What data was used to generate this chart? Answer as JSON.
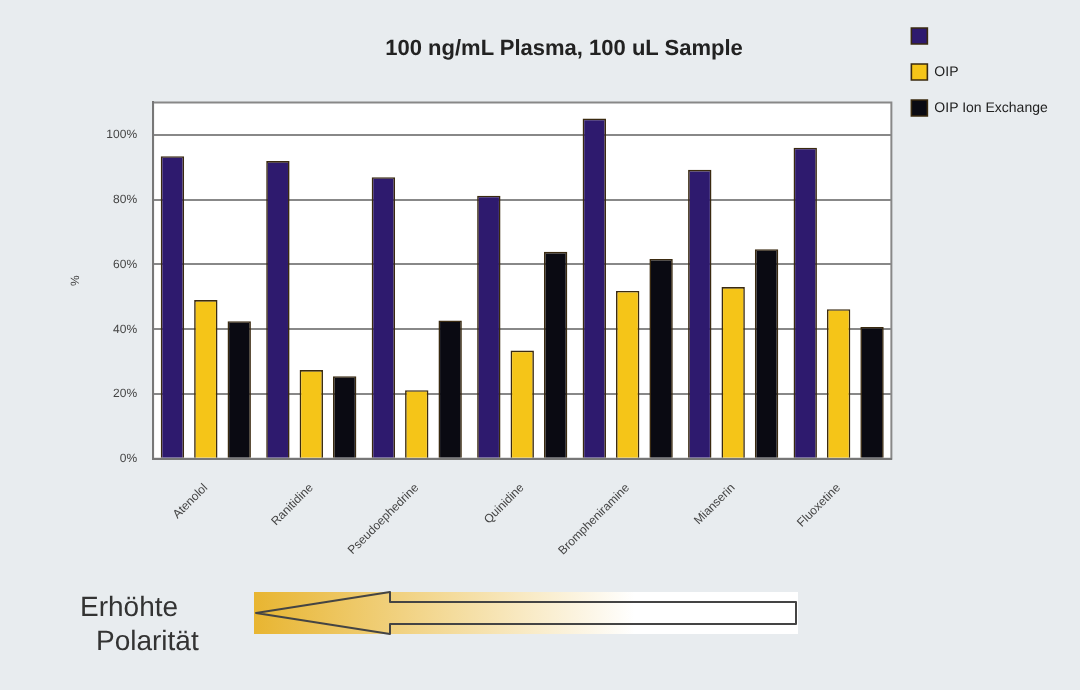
{
  "chart_data": {
    "type": "bar",
    "title": "100 ng/mL Plasma, 100 uL Sample",
    "ylabel": "%",
    "categories": [
      "Atenolol",
      "Ranitidine",
      "Pseudoephedrine",
      "Quinidine",
      "Brompheniramine",
      "Mianserin",
      "Fluoxetine"
    ],
    "series": [
      {
        "color": "#2e1a6e",
        "values": [
          93.4,
          91.9,
          86.9,
          81.2,
          105,
          89.2,
          96
        ]
      },
      {
        "name": "OIP",
        "color": "#f5c518",
        "values": [
          49,
          27.4,
          21.2,
          33.4,
          51.8,
          53,
          46.2
        ]
      },
      {
        "name": "OIP Ion Exchange",
        "color": "#0a0a12",
        "values": [
          42.5,
          25.5,
          42.7,
          63.9,
          61.7,
          64.7,
          40.7
        ]
      }
    ],
    "ylim": [
      0,
      110
    ],
    "yticks": [
      {
        "value": 0,
        "label": "0%"
      },
      {
        "value": 20,
        "label": "20%"
      },
      {
        "value": 40,
        "label": "40%"
      },
      {
        "value": 60,
        "label": "60%"
      },
      {
        "value": 80,
        "label": "80%"
      },
      {
        "value": 100,
        "label": "100%"
      }
    ],
    "grid": "y",
    "legend": "right",
    "annotations": [
      "Erhöhte Polarität"
    ]
  }
}
